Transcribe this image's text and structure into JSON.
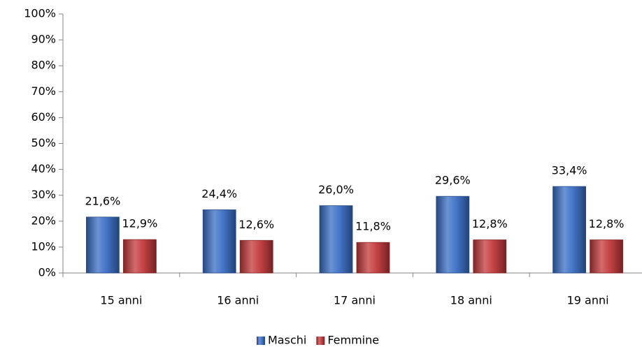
{
  "chart_data": {
    "type": "bar",
    "categories": [
      "15 anni",
      "16 anni",
      "17 anni",
      "18 anni",
      "19 anni"
    ],
    "series": [
      {
        "name": "Maschi",
        "color": "#3b6fc6",
        "values": [
          21.6,
          24.4,
          26.0,
          29.6,
          33.4
        ],
        "value_labels": [
          "21,6%",
          "24,4%",
          "26,0%",
          "29,6%",
          "33,4%"
        ]
      },
      {
        "name": "Femmine",
        "color": "#c3393b",
        "values": [
          12.9,
          12.6,
          11.8,
          12.8,
          12.8
        ],
        "value_labels": [
          "12,9%",
          "12,6%",
          "11,8%",
          "12,8%",
          "12,8%"
        ]
      }
    ],
    "ylim": [
      0,
      100
    ],
    "yticks": [
      {
        "value": 0,
        "label": "0%"
      },
      {
        "value": 10,
        "label": "10%"
      },
      {
        "value": 20,
        "label": "20%"
      },
      {
        "value": 30,
        "label": "30%"
      },
      {
        "value": 40,
        "label": "40%"
      },
      {
        "value": 50,
        "label": "50%"
      },
      {
        "value": 60,
        "label": "60%"
      },
      {
        "value": 70,
        "label": "70%"
      },
      {
        "value": 80,
        "label": "80%"
      },
      {
        "value": 90,
        "label": "90%"
      },
      {
        "value": 100,
        "label": "100%"
      }
    ],
    "grid": false,
    "legend": "bottom"
  }
}
